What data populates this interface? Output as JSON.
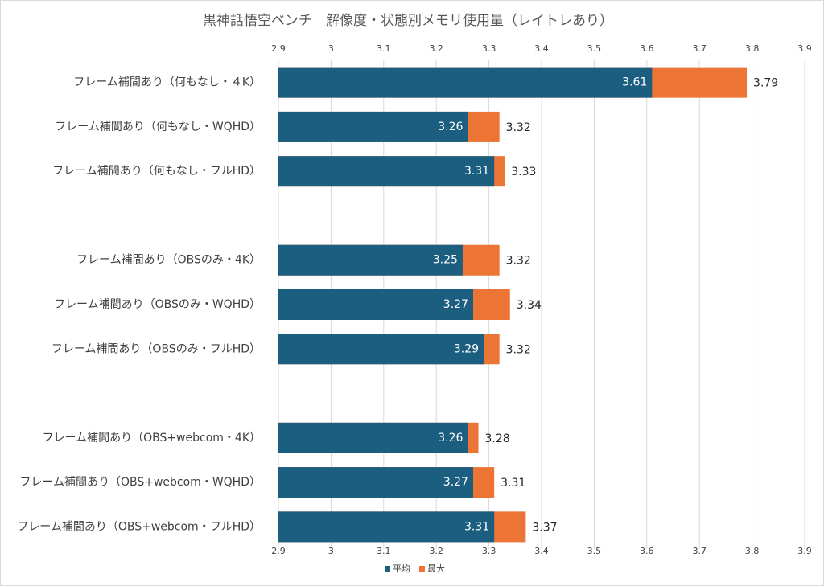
{
  "chart_data": {
    "type": "bar",
    "orientation": "horizontal",
    "title": "黒神話悟空ベンチ　解像度・状態別メモリ使用量（レイトレあり）",
    "categories": [
      "フレーム補間あり（何もなし・４K）",
      "フレーム補間あり（何もなし・WQHD）",
      "フレーム補間あり（何もなし・フルHD）",
      null,
      "フレーム補間あり（OBSのみ・4K）",
      "フレーム補間あり（OBSのみ・WQHD）",
      "フレーム補間あり（OBSのみ・フルHD）",
      null,
      "フレーム補間あり（OBS+webcom・4K）",
      "フレーム補間あり（OBS+webcom・WQHD）",
      "フレーム補間あり（OBS+webcom・フルHD）"
    ],
    "series": [
      {
        "name": "平均",
        "color": "#1b5e80",
        "values": [
          3.61,
          3.26,
          3.31,
          null,
          3.25,
          3.27,
          3.29,
          null,
          3.26,
          3.27,
          3.31
        ]
      },
      {
        "name": "最大",
        "color": "#ec7434",
        "values": [
          3.79,
          3.32,
          3.33,
          null,
          3.32,
          3.34,
          3.32,
          null,
          3.28,
          3.31,
          3.37
        ]
      }
    ],
    "xlim": [
      2.9,
      3.9
    ],
    "xticks": [
      2.9,
      3,
      3.1,
      3.2,
      3.3,
      3.4,
      3.5,
      3.6,
      3.7,
      3.8,
      3.9
    ],
    "grid": true,
    "legend": "bottom"
  }
}
